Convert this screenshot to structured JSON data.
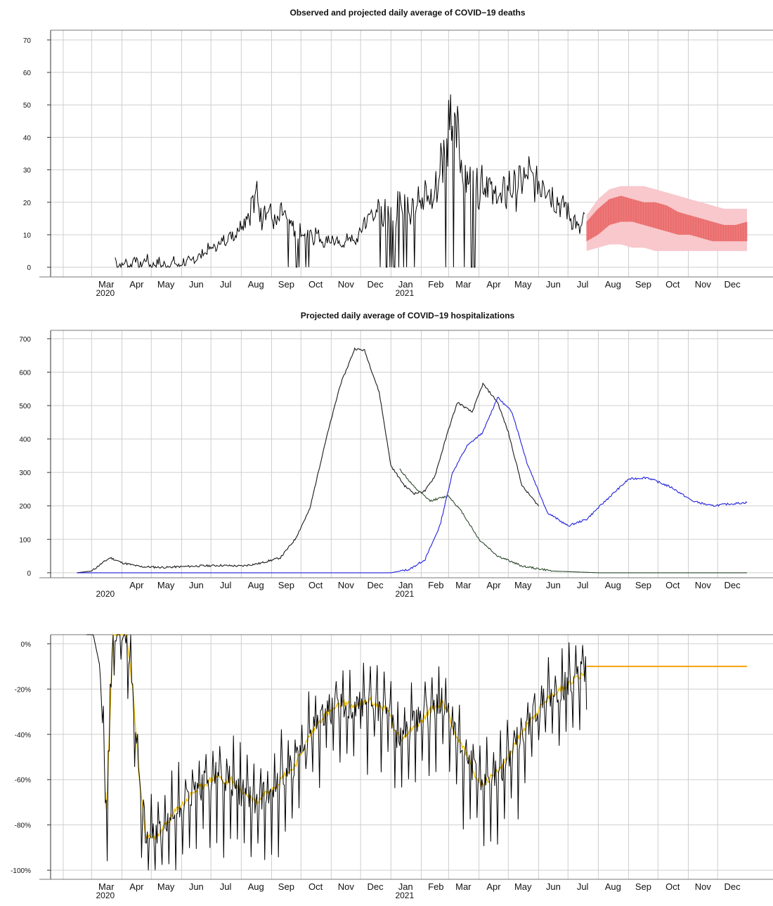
{
  "chart_data": [
    {
      "type": "line",
      "title": "Observed and projected daily average of COVID−19 deaths",
      "ylim": [
        -3,
        73
      ],
      "yticks": [
        0,
        10,
        20,
        30,
        40,
        50,
        60,
        70
      ],
      "ytick_labels": [
        "0",
        "10",
        "20",
        "30",
        "40",
        "50",
        "60",
        "70"
      ],
      "grid": true,
      "x_range": [
        "2020-02-01",
        "2021-12-31"
      ],
      "month_labels": [
        "Mar",
        "Apr",
        "May",
        "Jun",
        "Jul",
        "Aug",
        "Sep",
        "Oct",
        "Nov",
        "Dec",
        "Jan",
        "Feb",
        "Mar",
        "Apr",
        "May",
        "Jun",
        "Jul",
        "Aug",
        "Sep",
        "Oct",
        "Nov",
        "Dec"
      ],
      "year_labels": [
        "2020",
        "2021"
      ],
      "series": [
        {
          "kind": "observed",
          "color": "#000000",
          "x_start": "2020-03-25",
          "x_end": "2021-07-18",
          "values": [
            3,
            0,
            1,
            0,
            2,
            1,
            0,
            1,
            4,
            1,
            0,
            1,
            2,
            3,
            1,
            0,
            1,
            1,
            2,
            0,
            1,
            0,
            1,
            1,
            2,
            1,
            0,
            1,
            2,
            1,
            2,
            1,
            3,
            2,
            4,
            3,
            5,
            4,
            6,
            5,
            7,
            5,
            8,
            6,
            9,
            8,
            10,
            9,
            11,
            9,
            13,
            12,
            15,
            14,
            18,
            15,
            22,
            17,
            25,
            18,
            14,
            22,
            16,
            19,
            15,
            14,
            13,
            14,
            17,
            16,
            15,
            12,
            13,
            12,
            11,
            10,
            12,
            11,
            9,
            10,
            12,
            8,
            11,
            10,
            9,
            8,
            7,
            10,
            8,
            9,
            7,
            8,
            6,
            8,
            7,
            9,
            10,
            8,
            7,
            9,
            10,
            12,
            15,
            13,
            16,
            17,
            18,
            14,
            20,
            15,
            16,
            22,
            17,
            18,
            19,
            14,
            23,
            16,
            24,
            17,
            22,
            15,
            25,
            18,
            27,
            20,
            18,
            24,
            20,
            22,
            19,
            26,
            23,
            35,
            30,
            44,
            40,
            57,
            45,
            38,
            42,
            35,
            30,
            32,
            28,
            30,
            26,
            28,
            25,
            22,
            30,
            24,
            28,
            26,
            22,
            20,
            25,
            23,
            19,
            24,
            21,
            27,
            23,
            26,
            22,
            28,
            24,
            29,
            25,
            31,
            26,
            27,
            24,
            28,
            23,
            30,
            25,
            27,
            22,
            23,
            20,
            21,
            19,
            18,
            20,
            17,
            16,
            14,
            15,
            12,
            11,
            13,
            15
          ],
          "dropouts": [
            {
              "start": "2020-09-15",
              "end": "2020-10-10",
              "value": 0
            },
            {
              "start": "2020-12-20",
              "end": "2021-01-25",
              "value": 0
            },
            {
              "start": "2021-02-25",
              "end": "2021-03-28",
              "value": 0
            }
          ]
        },
        {
          "kind": "projection",
          "x_start": "2021-07-20",
          "x_end": "2021-12-31",
          "mean": [
            12,
            16,
            19,
            21,
            21,
            20,
            19,
            18,
            17,
            15,
            13,
            12,
            11,
            11,
            11
          ],
          "inner_low": [
            8,
            10,
            13,
            14,
            14,
            13,
            12,
            11,
            10,
            10,
            9,
            8,
            8,
            8,
            8
          ],
          "inner_high": [
            14,
            18,
            21,
            22,
            21,
            20,
            20,
            19,
            17,
            16,
            15,
            14,
            13,
            13,
            14
          ],
          "outer_low": [
            5,
            6,
            7,
            7,
            6,
            6,
            5,
            5,
            5,
            5,
            5,
            5,
            5,
            5,
            5
          ],
          "outer_high": [
            16,
            21,
            24,
            25,
            25,
            25,
            24,
            23,
            22,
            21,
            20,
            19,
            18,
            18,
            18
          ],
          "colors": {
            "mean": "#e84a4a",
            "inner": "#f08080",
            "outer": "#f8c8cc"
          }
        }
      ]
    },
    {
      "type": "line",
      "title": "Projected daily average of COVID−19 hospitalizations",
      "ylim": [
        -15,
        725
      ],
      "yticks": [
        0,
        100,
        200,
        300,
        400,
        500,
        600,
        700
      ],
      "ytick_labels": [
        "0",
        "100",
        "200",
        "300",
        "400",
        "500",
        "600",
        "700"
      ],
      "grid": true,
      "x_range": [
        "2020-02-01",
        "2021-12-31"
      ],
      "month_labels": [
        "Apr",
        "May",
        "Jun",
        "Jul",
        "Aug",
        "Sep",
        "Oct",
        "Nov",
        "Dec",
        "Jan",
        "Feb",
        "Mar",
        "Apr",
        "May",
        "Jun",
        "Jul",
        "Aug",
        "Sep",
        "Oct",
        "Nov",
        "Dec"
      ],
      "year_labels": [
        "2020",
        "2021"
      ],
      "series": [
        {
          "color": "#1a1a1a",
          "x": [
            "2020-02-15",
            "2020-03-01",
            "2020-03-10",
            "2020-03-20",
            "2020-04-01",
            "2020-04-20",
            "2020-05-15",
            "2020-06-15",
            "2020-07-10",
            "2020-08-01",
            "2020-08-20",
            "2020-09-10",
            "2020-09-25",
            "2020-10-10",
            "2020-10-25",
            "2020-11-10",
            "2020-11-25",
            "2020-12-05",
            "2020-12-20",
            "2021-01-01",
            "2021-01-15",
            "2021-01-25",
            "2021-02-05",
            "2021-02-15",
            "2021-03-01",
            "2021-03-10",
            "2021-03-25",
            "2021-04-05",
            "2021-04-20",
            "2021-05-01",
            "2021-05-15",
            "2021-06-01"
          ],
          "y": [
            0,
            5,
            25,
            45,
            30,
            18,
            16,
            20,
            22,
            20,
            28,
            45,
            100,
            190,
            380,
            560,
            670,
            665,
            540,
            320,
            260,
            237,
            245,
            290,
            430,
            510,
            480,
            565,
            510,
            420,
            260,
            200
          ]
        },
        {
          "color": "#2e4a2e",
          "x": [
            "2021-01-10",
            "2021-01-25",
            "2021-02-10",
            "2021-03-01",
            "2021-03-15",
            "2021-04-01",
            "2021-04-20",
            "2021-05-15",
            "2021-06-15",
            "2021-08-01",
            "2021-12-31"
          ],
          "y": [
            310,
            255,
            215,
            230,
            180,
            100,
            50,
            20,
            5,
            0,
            0
          ]
        },
        {
          "color": "#2222dd",
          "x": [
            "2020-02-15",
            "2021-01-01",
            "2021-01-20",
            "2021-02-05",
            "2021-02-20",
            "2021-03-05",
            "2021-03-20",
            "2021-04-05",
            "2021-04-20",
            "2021-05-05",
            "2021-05-20",
            "2021-06-10",
            "2021-07-01",
            "2021-07-20",
            "2021-08-10",
            "2021-09-01",
            "2021-09-20",
            "2021-10-15",
            "2021-11-05",
            "2021-11-25",
            "2021-12-10",
            "2021-12-31"
          ],
          "y": [
            0,
            0,
            10,
            40,
            140,
            300,
            380,
            420,
            525,
            480,
            330,
            180,
            140,
            160,
            220,
            280,
            285,
            255,
            215,
            200,
            205,
            210
          ]
        }
      ]
    },
    {
      "type": "line",
      "title": "",
      "ylim": [
        -104,
        4
      ],
      "yticks": [
        0,
        -20,
        -40,
        -60,
        -80,
        -100
      ],
      "ytick_labels": [
        "0%",
        "-20%",
        "-40%",
        "-60%",
        "-80%",
        "-100%"
      ],
      "grid": true,
      "x_range": [
        "2020-02-01",
        "2021-12-31"
      ],
      "month_labels": [
        "Mar",
        "Apr",
        "May",
        "Jun",
        "Jul",
        "Aug",
        "Sep",
        "Oct",
        "Nov",
        "Dec",
        "Jan",
        "Feb",
        "Mar",
        "Apr",
        "May",
        "Jun",
        "Jul",
        "Aug",
        "Sep",
        "Oct",
        "Nov",
        "Dec"
      ],
      "year_labels": [
        "2020",
        "2021"
      ],
      "series": [
        {
          "kind": "observed",
          "color": "#000000",
          "x_start": "2020-02-25",
          "x_end": "2021-07-20",
          "trend": [
            4,
            4,
            -10,
            -76,
            5,
            5,
            5,
            -20,
            -60,
            -85,
            -86,
            -84,
            -80,
            -76,
            -72,
            -70,
            -66,
            -64,
            -62,
            -60,
            -58,
            -62,
            -60,
            -64,
            -66,
            -68,
            -70,
            -66,
            -64,
            -62,
            -58,
            -56,
            -52,
            -46,
            -40,
            -36,
            -32,
            -30,
            -28,
            -26,
            -27,
            -28,
            -26,
            -25,
            -27,
            -28,
            -30,
            -40,
            -42,
            -38,
            -36,
            -34,
            -30,
            -28,
            -26,
            -30,
            -40,
            -45,
            -50,
            -58,
            -62,
            -60,
            -58,
            -55,
            -50,
            -45,
            -40,
            -35,
            -32,
            -28,
            -25,
            -22,
            -20,
            -18,
            -16,
            -14,
            -12
          ]
        },
        {
          "kind": "smoothed",
          "color": "#f2c200",
          "x_start": "2020-03-15",
          "x_end": "2021-07-18"
        },
        {
          "kind": "projection",
          "color": "#f5a20a",
          "x": [
            "2021-07-20",
            "2021-12-31"
          ],
          "y": [
            -10,
            -10
          ]
        }
      ]
    }
  ]
}
